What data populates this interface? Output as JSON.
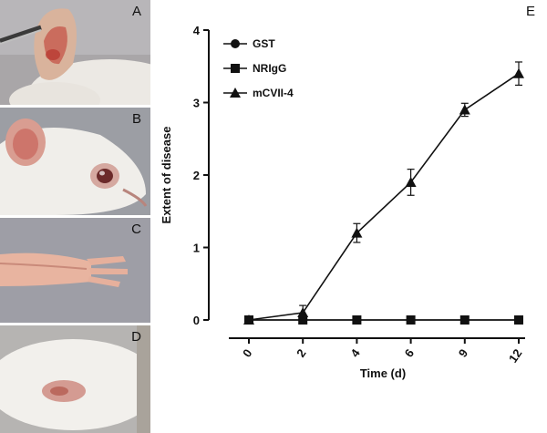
{
  "panels": {
    "a": {
      "letter": "A"
    },
    "b": {
      "letter": "B"
    },
    "c": {
      "letter": "C"
    },
    "d": {
      "letter": "D"
    },
    "e": {
      "letter": "E"
    }
  },
  "chart_data": {
    "type": "line",
    "title": "",
    "xlabel": "Time (d)",
    "ylabel": "Extent of disease",
    "categories": [
      "0",
      "2",
      "4",
      "6",
      "9",
      "12"
    ],
    "ylim": [
      0,
      4
    ],
    "yticks": [
      "0",
      "1",
      "2",
      "3",
      "4"
    ],
    "legend_position": "top-left",
    "grid": false,
    "series": [
      {
        "name": "GST",
        "marker": "circle",
        "values": [
          0,
          0,
          0,
          0,
          0,
          0
        ],
        "errors": [
          0,
          0,
          0,
          0,
          0,
          0
        ]
      },
      {
        "name": "NRIgG",
        "marker": "square",
        "values": [
          0,
          0,
          0,
          0,
          0,
          0
        ],
        "errors": [
          0,
          0,
          0,
          0,
          0,
          0
        ]
      },
      {
        "name": "mCVII-4",
        "marker": "triangle",
        "values": [
          0,
          0.1,
          1.2,
          1.9,
          2.9,
          3.4
        ],
        "errors": [
          0,
          0.1,
          0.13,
          0.18,
          0.09,
          0.16
        ]
      }
    ]
  }
}
